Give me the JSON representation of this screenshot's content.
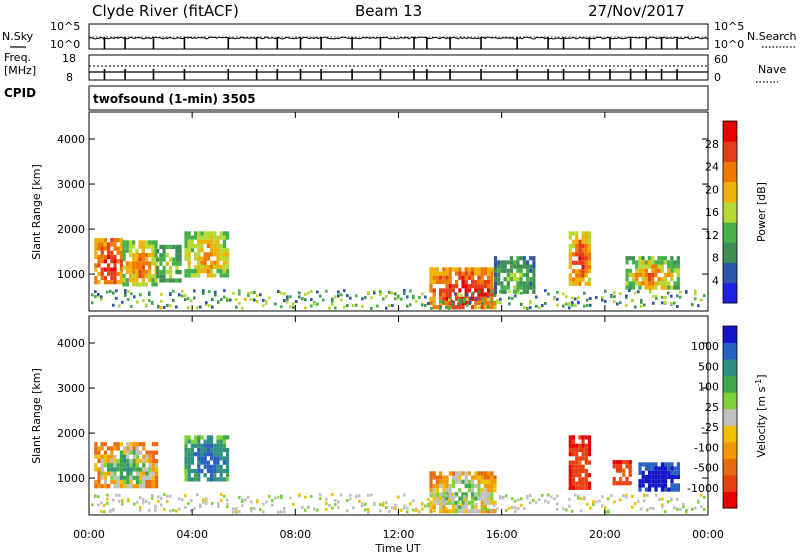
{
  "header": {
    "station": "Clyde River (fitACF)",
    "beam": "Beam 13",
    "date": "27/Nov/2017"
  },
  "noise_panel": {
    "left_label": "N.Sky",
    "right_label": "N.Search",
    "top_tick_left": "10^5",
    "bottom_tick_left": "10^0",
    "top_tick_right": "10^5",
    "bottom_tick_right": "10^0"
  },
  "freq_panel": {
    "left_label_1": "Freq.",
    "left_label_2": "[MHz]",
    "right_label": "Nave",
    "left_ticks": [
      "18",
      "8"
    ],
    "right_ticks": [
      "60",
      "0"
    ],
    "freq_range_mhz": [
      8,
      18
    ],
    "nave_range": [
      0,
      60
    ]
  },
  "cpid": {
    "label": "CPID",
    "mode": "twofsound (1-min) 3505"
  },
  "time_axis": {
    "label": "Time UT",
    "range_hours": [
      0,
      24
    ],
    "ticks": [
      "00:00",
      "04:00",
      "08:00",
      "12:00",
      "16:00",
      "20:00",
      "00:00"
    ]
  },
  "colors": {
    "power_scale": [
      "#1f1fe6",
      "#2f57a8",
      "#3f8f55",
      "#44b04a",
      "#b6d833",
      "#f0b000",
      "#f07800",
      "#e63c1a",
      "#e60000"
    ],
    "velocity_scale": [
      "#1515c8",
      "#2860c0",
      "#2f8f80",
      "#3fa84a",
      "#7fd23a",
      "#c0c0c0",
      "#f0c000",
      "#f09a00",
      "#e86a10",
      "#e84010",
      "#e60000"
    ]
  },
  "chart_data": [
    {
      "type": "heatmap",
      "name": "power",
      "ylabel": "Slant Range [km]",
      "xlabel": "",
      "y_ticks": [
        1000,
        2000,
        3000,
        4000
      ],
      "ylim": [
        180,
        4600
      ],
      "xlim_hours": [
        0,
        24
      ],
      "colorbar": {
        "label": "Power [dB]",
        "ticks": [
          "4",
          "8",
          "12",
          "16",
          "20",
          "24",
          "28"
        ],
        "range": [
          0,
          32
        ]
      },
      "regions": [
        {
          "t0": 0.2,
          "t1": 1.3,
          "r0": 800,
          "r1": 1800,
          "v0": 20,
          "v1": 30
        },
        {
          "t0": 1.3,
          "t1": 2.6,
          "r0": 800,
          "r1": 1750,
          "v0": 12,
          "v1": 26
        },
        {
          "t0": 2.6,
          "t1": 3.5,
          "r0": 900,
          "r1": 1650,
          "v0": 8,
          "v1": 18
        },
        {
          "t0": 3.7,
          "t1": 5.4,
          "r0": 1000,
          "r1": 1950,
          "v0": 12,
          "v1": 24
        },
        {
          "t0": 13.2,
          "t1": 15.7,
          "r0": 250,
          "r1": 1150,
          "v0": 20,
          "v1": 32
        },
        {
          "t0": 15.7,
          "t1": 17.2,
          "r0": 600,
          "r1": 1400,
          "v0": 6,
          "v1": 16
        },
        {
          "t0": 18.6,
          "t1": 19.4,
          "r0": 800,
          "r1": 1950,
          "v0": 16,
          "v1": 30
        },
        {
          "t0": 20.8,
          "t1": 22.8,
          "r0": 700,
          "r1": 1400,
          "v0": 10,
          "v1": 26
        }
      ]
    },
    {
      "type": "heatmap",
      "name": "velocity",
      "ylabel": "Slant Range [km]",
      "xlabel": "Time UT",
      "y_ticks": [
        1000,
        2000,
        3000,
        4000
      ],
      "ylim": [
        180,
        4600
      ],
      "xlim_hours": [
        0,
        24
      ],
      "colorbar": {
        "label": "Velocity [m s^-1]",
        "ticks": [
          "1000",
          "500",
          "100",
          "25",
          "-25",
          "-100",
          "-500",
          "-1000"
        ]
      },
      "regions": [
        {
          "t0": 0.2,
          "t1": 2.6,
          "r0": 800,
          "r1": 1800,
          "v0": -150,
          "v1": 150
        },
        {
          "t0": 3.7,
          "t1": 5.4,
          "r0": 1000,
          "r1": 1950,
          "v0": 50,
          "v1": 400
        },
        {
          "t0": 13.2,
          "t1": 15.7,
          "r0": 250,
          "r1": 1150,
          "v0": -100,
          "v1": 100
        },
        {
          "t0": 18.6,
          "t1": 19.4,
          "r0": 800,
          "r1": 1950,
          "v0": -600,
          "v1": -200
        },
        {
          "t0": 20.3,
          "t1": 21.0,
          "r0": 900,
          "r1": 1400,
          "v0": -500,
          "v1": -200
        },
        {
          "t0": 21.3,
          "t1": 22.8,
          "r0": 700,
          "r1": 1350,
          "v0": 300,
          "v1": 1000
        }
      ]
    }
  ]
}
